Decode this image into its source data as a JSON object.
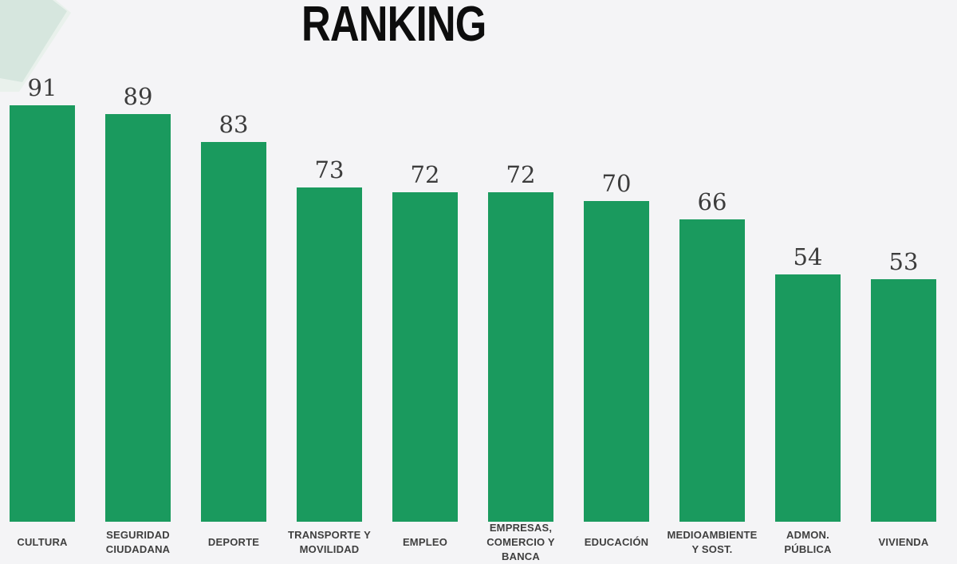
{
  "title": "RANKING",
  "colors": {
    "background": "#f4f4f6",
    "bar": "#1a9a5e",
    "value_label": "#3c3c3c",
    "category_label": "#3f3f3f",
    "title_text": "#0d0d0d",
    "chevron": "#d6e6de",
    "chevron_light": "#e9f1ec"
  },
  "decor": {
    "chevron_icon": "light-green corner chevron, top-left, clipped by edge"
  },
  "chart_data": {
    "type": "bar",
    "title": "RANKING",
    "categories": [
      "CULTURA",
      "SEGURIDAD CIUDADANA",
      "DEPORTE",
      "TRANSPORTE Y MOVILIDAD",
      "EMPLEO",
      "EMPRESAS, COMERCIO Y BANCA",
      "EDUCACIÓN",
      "MEDIOAMBIENTE Y SOST.",
      "ADMON. PÚBLICA",
      "VIVIENDA"
    ],
    "category_lines": [
      [
        "CULTURA"
      ],
      [
        "SEGURIDAD",
        "CIUDADANA"
      ],
      [
        "DEPORTE"
      ],
      [
        "TRANSPORTE Y",
        "MOVILIDAD"
      ],
      [
        "EMPLEO"
      ],
      [
        "EMPRESAS,",
        "COMERCIO Y",
        "BANCA"
      ],
      [
        "EDUCACIÓN"
      ],
      [
        "MEDIOAMBIENTE",
        "Y SOST."
      ],
      [
        "ADMON.",
        "PÚBLICA"
      ],
      [
        "VIVIENDA"
      ]
    ],
    "values": [
      91,
      89,
      83,
      73,
      72,
      72,
      70,
      66,
      54,
      53
    ],
    "xlabel": "",
    "ylabel": "",
    "ylim": [
      0,
      100
    ],
    "grid": false,
    "legend": false,
    "bar_color": "#1a9a5e",
    "value_labels_shown": true
  }
}
